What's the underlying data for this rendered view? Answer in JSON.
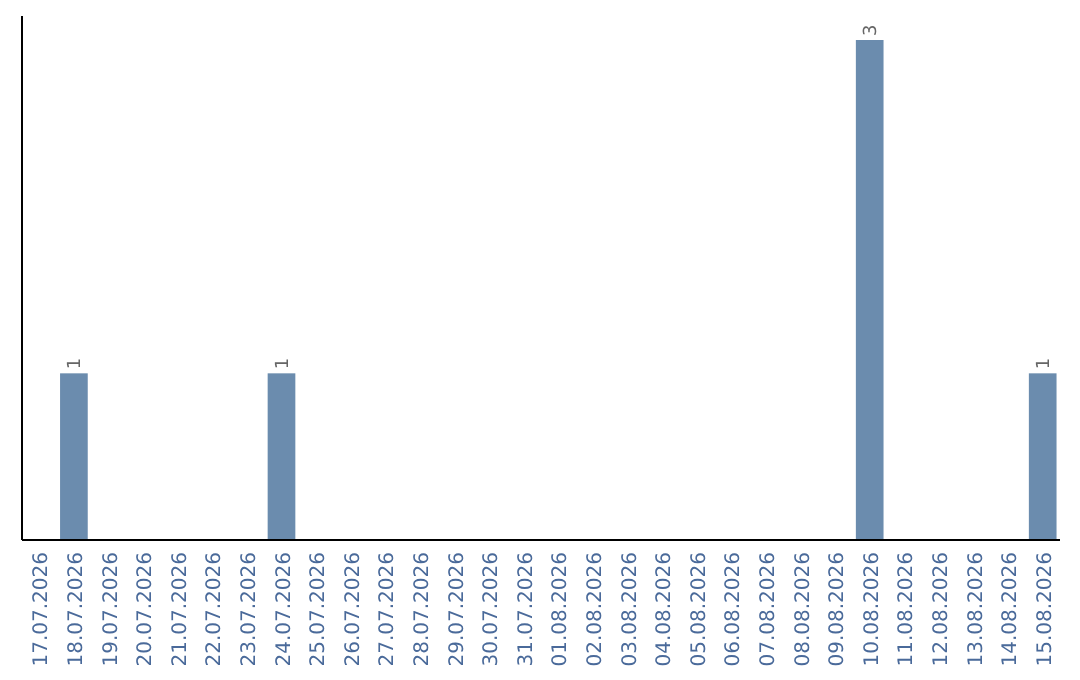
{
  "chart_data": {
    "type": "bar",
    "categories": [
      "17.07.2026",
      "18.07.2026",
      "19.07.2026",
      "20.07.2026",
      "21.07.2026",
      "22.07.2026",
      "23.07.2026",
      "24.07.2026",
      "25.07.2026",
      "26.07.2026",
      "27.07.2026",
      "28.07.2026",
      "29.07.2026",
      "30.07.2026",
      "31.07.2026",
      "01.08.2026",
      "02.08.2026",
      "03.08.2026",
      "04.08.2026",
      "05.08.2026",
      "06.08.2026",
      "07.08.2026",
      "08.08.2026",
      "09.08.2026",
      "10.08.2026",
      "11.08.2026",
      "12.08.2026",
      "13.08.2026",
      "14.08.2026",
      "15.08.2026"
    ],
    "values": [
      0,
      1,
      0,
      0,
      0,
      0,
      0,
      1,
      0,
      0,
      0,
      0,
      0,
      0,
      0,
      0,
      0,
      0,
      0,
      0,
      0,
      0,
      0,
      0,
      3,
      0,
      0,
      0,
      0,
      1
    ],
    "value_labels": [
      null,
      "1",
      null,
      null,
      null,
      null,
      null,
      "1",
      null,
      null,
      null,
      null,
      null,
      null,
      null,
      null,
      null,
      null,
      null,
      null,
      null,
      null,
      null,
      null,
      "3",
      null,
      null,
      null,
      null,
      "1"
    ],
    "color": "#6b8cae"
  }
}
